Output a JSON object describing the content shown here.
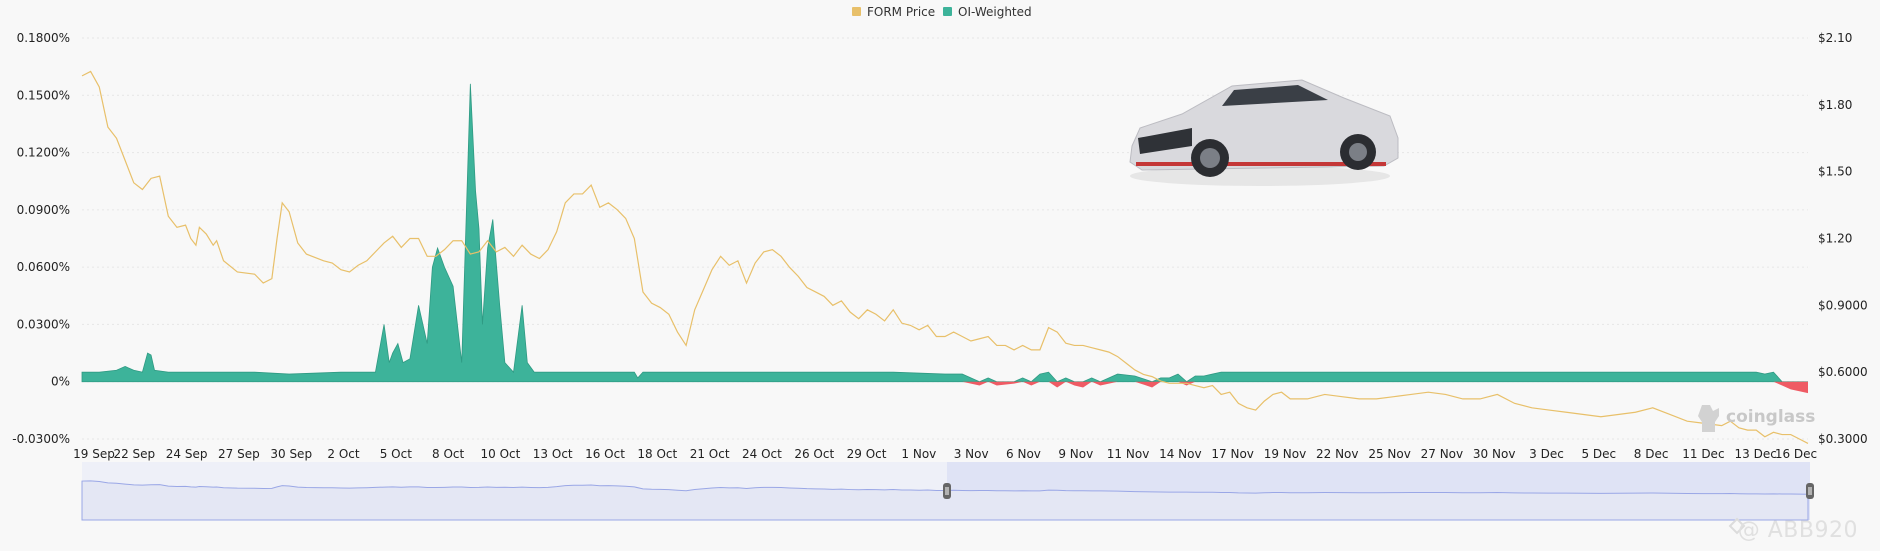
{
  "legend": [
    {
      "label": "FORM Price",
      "color": "#e8c06a"
    },
    {
      "label": "OI-Weighted",
      "color": "#3db39a"
    }
  ],
  "watermark": "coinglass",
  "credit": "@ ABB920",
  "colors": {
    "positive": "#3db39a",
    "negative": "#ef5b64",
    "price": "#e8c06a",
    "navigator": "#9aa7e6",
    "navigator_fill": "#dfe3f5",
    "grid": "#e6e6e6"
  },
  "icons": [
    "car-image",
    "coinglass-logo-icon",
    "binance-logo-icon",
    "range-handle-icon"
  ],
  "chart_data": {
    "type": "area",
    "x_ticks": [
      "19 Sep",
      "22 Sep",
      "24 Sep",
      "27 Sep",
      "30 Sep",
      "2 Oct",
      "5 Oct",
      "8 Oct",
      "10 Oct",
      "13 Oct",
      "16 Oct",
      "18 Oct",
      "21 Oct",
      "24 Oct",
      "26 Oct",
      "29 Oct",
      "1 Nov",
      "3 Nov",
      "6 Nov",
      "9 Nov",
      "11 Nov",
      "14 Nov",
      "17 Nov",
      "19 Nov",
      "22 Nov",
      "25 Nov",
      "27 Nov",
      "30 Nov",
      "3 Dec",
      "5 Dec",
      "8 Dec",
      "11 Dec",
      "13 Dec",
      "16 Dec"
    ],
    "y_left_ticks": [
      "0.1800%",
      "0.1500%",
      "0.1200%",
      "0.0900%",
      "0.0600%",
      "0.0300%",
      "0%",
      "-0.0300%"
    ],
    "y_left_range": [
      -0.03,
      0.18
    ],
    "y_right_ticks": [
      "$2.10",
      "$1.80",
      "$1.50",
      "$1.20",
      "$0.9000",
      "$0.6000",
      "$0.3000"
    ],
    "y_right_range": [
      0.3,
      2.1
    ],
    "series": [
      {
        "name": "FORM Price",
        "axis": "right",
        "points": [
          [
            0,
            1.93
          ],
          [
            0.005,
            1.95
          ],
          [
            0.01,
            1.88
          ],
          [
            0.015,
            1.7
          ],
          [
            0.02,
            1.65
          ],
          [
            0.025,
            1.55
          ],
          [
            0.03,
            1.45
          ],
          [
            0.035,
            1.42
          ],
          [
            0.04,
            1.47
          ],
          [
            0.045,
            1.48
          ],
          [
            0.05,
            1.3
          ],
          [
            0.055,
            1.25
          ],
          [
            0.06,
            1.26
          ],
          [
            0.063,
            1.2
          ],
          [
            0.066,
            1.17
          ],
          [
            0.068,
            1.25
          ],
          [
            0.072,
            1.22
          ],
          [
            0.076,
            1.17
          ],
          [
            0.078,
            1.19
          ],
          [
            0.082,
            1.1
          ],
          [
            0.09,
            1.05
          ],
          [
            0.1,
            1.04
          ],
          [
            0.105,
            1.0
          ],
          [
            0.11,
            1.02
          ],
          [
            0.113,
            1.2
          ],
          [
            0.116,
            1.36
          ],
          [
            0.12,
            1.32
          ],
          [
            0.125,
            1.18
          ],
          [
            0.13,
            1.13
          ],
          [
            0.14,
            1.1
          ],
          [
            0.145,
            1.09
          ],
          [
            0.15,
            1.06
          ],
          [
            0.155,
            1.05
          ],
          [
            0.16,
            1.08
          ],
          [
            0.165,
            1.1
          ],
          [
            0.17,
            1.14
          ],
          [
            0.175,
            1.18
          ],
          [
            0.18,
            1.21
          ],
          [
            0.185,
            1.16
          ],
          [
            0.19,
            1.2
          ],
          [
            0.195,
            1.2
          ],
          [
            0.2,
            1.12
          ],
          [
            0.205,
            1.12
          ],
          [
            0.21,
            1.15
          ],
          [
            0.215,
            1.19
          ],
          [
            0.22,
            1.19
          ],
          [
            0.225,
            1.13
          ],
          [
            0.23,
            1.14
          ],
          [
            0.235,
            1.19
          ],
          [
            0.24,
            1.14
          ],
          [
            0.245,
            1.16
          ],
          [
            0.25,
            1.12
          ],
          [
            0.255,
            1.17
          ],
          [
            0.26,
            1.13
          ],
          [
            0.265,
            1.11
          ],
          [
            0.27,
            1.15
          ],
          [
            0.275,
            1.23
          ],
          [
            0.28,
            1.36
          ],
          [
            0.285,
            1.4
          ],
          [
            0.29,
            1.4
          ],
          [
            0.295,
            1.44
          ],
          [
            0.3,
            1.34
          ],
          [
            0.305,
            1.36
          ],
          [
            0.31,
            1.33
          ],
          [
            0.315,
            1.29
          ],
          [
            0.32,
            1.2
          ],
          [
            0.325,
            0.96
          ],
          [
            0.33,
            0.91
          ],
          [
            0.335,
            0.89
          ],
          [
            0.34,
            0.86
          ],
          [
            0.345,
            0.78
          ],
          [
            0.35,
            0.72
          ],
          [
            0.355,
            0.88
          ],
          [
            0.36,
            0.97
          ],
          [
            0.365,
            1.06
          ],
          [
            0.37,
            1.12
          ],
          [
            0.375,
            1.08
          ],
          [
            0.38,
            1.1
          ],
          [
            0.385,
            1.0
          ],
          [
            0.39,
            1.09
          ],
          [
            0.395,
            1.14
          ],
          [
            0.4,
            1.15
          ],
          [
            0.405,
            1.12
          ],
          [
            0.41,
            1.07
          ],
          [
            0.415,
            1.03
          ],
          [
            0.42,
            0.98
          ],
          [
            0.425,
            0.96
          ],
          [
            0.43,
            0.94
          ],
          [
            0.435,
            0.9
          ],
          [
            0.44,
            0.92
          ],
          [
            0.445,
            0.87
          ],
          [
            0.45,
            0.84
          ],
          [
            0.455,
            0.88
          ],
          [
            0.46,
            0.86
          ],
          [
            0.465,
            0.83
          ],
          [
            0.47,
            0.88
          ],
          [
            0.475,
            0.82
          ],
          [
            0.48,
            0.81
          ],
          [
            0.485,
            0.79
          ],
          [
            0.49,
            0.81
          ],
          [
            0.495,
            0.76
          ],
          [
            0.5,
            0.76
          ],
          [
            0.505,
            0.78
          ],
          [
            0.51,
            0.76
          ],
          [
            0.515,
            0.74
          ],
          [
            0.52,
            0.75
          ],
          [
            0.525,
            0.76
          ],
          [
            0.53,
            0.72
          ],
          [
            0.535,
            0.72
          ],
          [
            0.54,
            0.7
          ],
          [
            0.545,
            0.72
          ],
          [
            0.55,
            0.7
          ],
          [
            0.555,
            0.7
          ],
          [
            0.56,
            0.8
          ],
          [
            0.565,
            0.78
          ],
          [
            0.57,
            0.73
          ],
          [
            0.575,
            0.72
          ],
          [
            0.58,
            0.72
          ],
          [
            0.585,
            0.71
          ],
          [
            0.59,
            0.7
          ],
          [
            0.595,
            0.69
          ],
          [
            0.6,
            0.67
          ],
          [
            0.605,
            0.64
          ],
          [
            0.61,
            0.61
          ],
          [
            0.615,
            0.59
          ],
          [
            0.62,
            0.58
          ],
          [
            0.625,
            0.56
          ],
          [
            0.63,
            0.55
          ],
          [
            0.635,
            0.55
          ],
          [
            0.64,
            0.55
          ],
          [
            0.645,
            0.54
          ],
          [
            0.65,
            0.53
          ],
          [
            0.655,
            0.54
          ],
          [
            0.66,
            0.5
          ],
          [
            0.665,
            0.51
          ],
          [
            0.67,
            0.46
          ],
          [
            0.675,
            0.44
          ],
          [
            0.68,
            0.43
          ],
          [
            0.685,
            0.47
          ],
          [
            0.69,
            0.5
          ],
          [
            0.695,
            0.51
          ],
          [
            0.7,
            0.48
          ],
          [
            0.71,
            0.48
          ],
          [
            0.72,
            0.5
          ],
          [
            0.73,
            0.49
          ],
          [
            0.74,
            0.48
          ],
          [
            0.75,
            0.48
          ],
          [
            0.76,
            0.49
          ],
          [
            0.77,
            0.5
          ],
          [
            0.78,
            0.51
          ],
          [
            0.79,
            0.5
          ],
          [
            0.8,
            0.48
          ],
          [
            0.81,
            0.48
          ],
          [
            0.82,
            0.5
          ],
          [
            0.83,
            0.46
          ],
          [
            0.84,
            0.44
          ],
          [
            0.85,
            0.43
          ],
          [
            0.86,
            0.42
          ],
          [
            0.87,
            0.41
          ],
          [
            0.88,
            0.4
          ],
          [
            0.89,
            0.41
          ],
          [
            0.9,
            0.42
          ],
          [
            0.91,
            0.44
          ],
          [
            0.92,
            0.41
          ],
          [
            0.93,
            0.38
          ],
          [
            0.94,
            0.37
          ],
          [
            0.95,
            0.36
          ],
          [
            0.955,
            0.38
          ],
          [
            0.96,
            0.35
          ],
          [
            0.965,
            0.34
          ],
          [
            0.97,
            0.34
          ],
          [
            0.975,
            0.31
          ],
          [
            0.98,
            0.33
          ],
          [
            0.985,
            0.32
          ],
          [
            0.99,
            0.32
          ],
          [
            0.995,
            0.3
          ],
          [
            1.0,
            0.28
          ]
        ]
      },
      {
        "name": "OI-Weighted",
        "axis": "left",
        "points": [
          [
            0,
            0.005
          ],
          [
            0.01,
            0.005
          ],
          [
            0.02,
            0.006
          ],
          [
            0.025,
            0.008
          ],
          [
            0.03,
            0.006
          ],
          [
            0.035,
            0.005
          ],
          [
            0.038,
            0.015
          ],
          [
            0.04,
            0.014
          ],
          [
            0.042,
            0.006
          ],
          [
            0.05,
            0.005
          ],
          [
            0.1,
            0.005
          ],
          [
            0.12,
            0.004
          ],
          [
            0.15,
            0.005
          ],
          [
            0.17,
            0.005
          ],
          [
            0.175,
            0.03
          ],
          [
            0.178,
            0.01
          ],
          [
            0.18,
            0.015
          ],
          [
            0.183,
            0.02
          ],
          [
            0.186,
            0.01
          ],
          [
            0.19,
            0.012
          ],
          [
            0.195,
            0.04
          ],
          [
            0.2,
            0.02
          ],
          [
            0.203,
            0.06
          ],
          [
            0.206,
            0.07
          ],
          [
            0.21,
            0.06
          ],
          [
            0.215,
            0.05
          ],
          [
            0.22,
            0.01
          ],
          [
            0.225,
            0.156
          ],
          [
            0.228,
            0.1
          ],
          [
            0.23,
            0.08
          ],
          [
            0.232,
            0.03
          ],
          [
            0.235,
            0.07
          ],
          [
            0.238,
            0.085
          ],
          [
            0.242,
            0.04
          ],
          [
            0.245,
            0.01
          ],
          [
            0.25,
            0.005
          ],
          [
            0.255,
            0.04
          ],
          [
            0.258,
            0.01
          ],
          [
            0.262,
            0.005
          ],
          [
            0.3,
            0.005
          ],
          [
            0.32,
            0.005
          ],
          [
            0.322,
            0.002
          ],
          [
            0.325,
            0.005
          ],
          [
            0.4,
            0.005
          ],
          [
            0.45,
            0.005
          ],
          [
            0.47,
            0.005
          ],
          [
            0.5,
            0.004
          ],
          [
            0.51,
            0.004
          ],
          [
            0.52,
            -0.002
          ],
          [
            0.525,
            0.002
          ],
          [
            0.53,
            -0.002
          ],
          [
            0.54,
            -0.001
          ],
          [
            0.545,
            0.002
          ],
          [
            0.55,
            -0.002
          ],
          [
            0.555,
            0.004
          ],
          [
            0.56,
            0.005
          ],
          [
            0.565,
            -0.003
          ],
          [
            0.57,
            0.002
          ],
          [
            0.575,
            -0.002
          ],
          [
            0.58,
            -0.003
          ],
          [
            0.585,
            0.002
          ],
          [
            0.59,
            -0.002
          ],
          [
            0.6,
            0.004
          ],
          [
            0.61,
            0.003
          ],
          [
            0.62,
            -0.003
          ],
          [
            0.625,
            0.002
          ],
          [
            0.63,
            0.002
          ],
          [
            0.635,
            0.004
          ],
          [
            0.64,
            -0.002
          ],
          [
            0.645,
            0.003
          ],
          [
            0.65,
            0.003
          ],
          [
            0.655,
            0.004
          ],
          [
            0.66,
            0.005
          ],
          [
            0.7,
            0.005
          ],
          [
            0.8,
            0.005
          ],
          [
            0.9,
            0.005
          ],
          [
            0.95,
            0.005
          ],
          [
            0.97,
            0.005
          ],
          [
            0.975,
            0.004
          ],
          [
            0.98,
            0.005
          ],
          [
            0.985,
            -0.002
          ],
          [
            0.99,
            -0.004
          ],
          [
            1.0,
            -0.006
          ]
        ]
      }
    ],
    "grid": true,
    "legend_position": "top-center"
  }
}
